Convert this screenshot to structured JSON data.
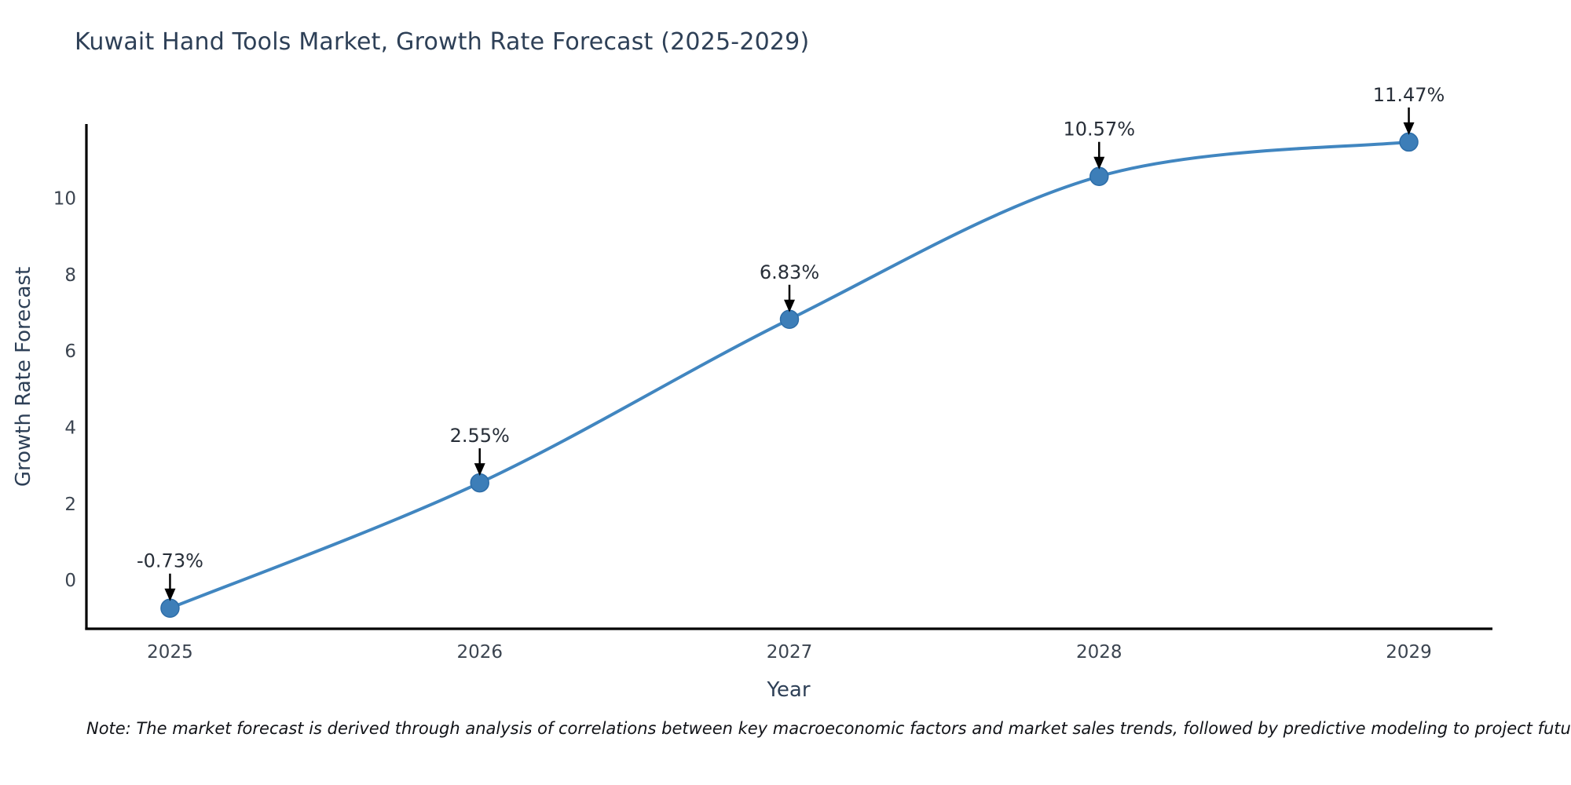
{
  "title": "Kuwait Hand Tools Market, Growth Rate Forecast (2025-2029)",
  "note": "Note: The market forecast is derived through analysis of correlations between key macroeconomic factors and market sales trends, followed by predictive modeling to project future sales",
  "chart_data": {
    "type": "line",
    "title": "Kuwait Hand Tools Market, Growth Rate Forecast (2025-2029)",
    "xlabel": "Year",
    "ylabel": "Growth Rate Forecast",
    "x": [
      2025,
      2026,
      2027,
      2028,
      2029
    ],
    "values": [
      -0.73,
      2.55,
      6.83,
      10.57,
      11.47
    ],
    "point_labels": [
      "-0.73%",
      "2.55%",
      "6.83%",
      "10.57%",
      "11.47%"
    ],
    "xticks": [
      2025,
      2026,
      2027,
      2028,
      2029
    ],
    "yticks": [
      0,
      2,
      4,
      6,
      8,
      10
    ],
    "xlim": [
      2024.73,
      2029.27
    ],
    "ylim": [
      -1.27,
      11.9
    ],
    "grid": false,
    "legend": "none",
    "smooth": true,
    "line_color": "#4186c0",
    "marker_color": "#3d7eb8",
    "marker_edge_color": "#2d6da8",
    "axis_color": "#000000",
    "annotation_arrow_color": "#000000"
  }
}
